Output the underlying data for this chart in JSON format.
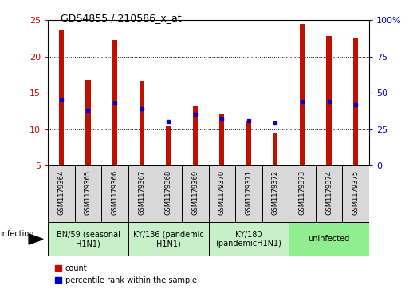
{
  "title": "GDS4855 / 210586_x_at",
  "samples": [
    "GSM1179364",
    "GSM1179365",
    "GSM1179366",
    "GSM1179367",
    "GSM1179368",
    "GSM1179369",
    "GSM1179370",
    "GSM1179371",
    "GSM1179372",
    "GSM1179373",
    "GSM1179374",
    "GSM1179375"
  ],
  "counts": [
    23.7,
    16.8,
    22.3,
    16.6,
    10.4,
    13.1,
    12.0,
    11.0,
    9.4,
    24.5,
    22.8,
    22.6
  ],
  "percentile_ranks": [
    45,
    38,
    43,
    39,
    30,
    35,
    32,
    31,
    29,
    44,
    44,
    42
  ],
  "bar_color": "#C01000",
  "dot_color": "#0000CC",
  "ylim_left": [
    5,
    25
  ],
  "yticks_left": [
    5,
    10,
    15,
    20,
    25
  ],
  "ylim_right": [
    0,
    100
  ],
  "yticks_right": [
    0,
    25,
    50,
    75,
    100
  ],
  "groups": [
    {
      "label": "BN/59 (seasonal\nH1N1)",
      "start": 0,
      "end": 3,
      "color": "#c8f0c8"
    },
    {
      "label": "KY/136 (pandemic\nH1N1)",
      "start": 3,
      "end": 6,
      "color": "#c8f0c8"
    },
    {
      "label": "KY/180\n(pandemicH1N1)",
      "start": 6,
      "end": 9,
      "color": "#c8f0c8"
    },
    {
      "label": "uninfected",
      "start": 9,
      "end": 12,
      "color": "#90EE90"
    }
  ],
  "infection_label": "infection",
  "legend_count_label": "count",
  "legend_percentile_label": "percentile rank within the sample",
  "left_axis_color": "#C01000",
  "right_axis_color": "#0000CC",
  "bar_width": 0.18,
  "figsize": [
    5.23,
    3.63
  ],
  "dpi": 100
}
